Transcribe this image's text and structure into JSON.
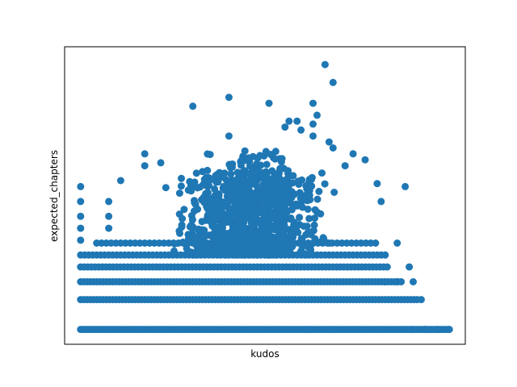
{
  "chart_data": {
    "type": "scatter",
    "title": "",
    "xlabel": "kudos",
    "ylabel": "expected_chapters",
    "ticks_visible": false,
    "grid": false,
    "legend": "none",
    "marker_color": "#1f77b4",
    "xlim": [
      0,
      100
    ],
    "ylim": [
      0,
      100
    ],
    "bands": [
      {
        "y": 5,
        "x_from": 4,
        "x_to": 96,
        "step": 0.6
      },
      {
        "y": 15,
        "x_from": 4,
        "x_to": 88,
        "step": 0.8
      },
      {
        "y": 21,
        "x_from": 4,
        "x_to": 84,
        "step": 0.8
      },
      {
        "y": 26,
        "x_from": 4,
        "x_to": 81,
        "step": 0.9
      },
      {
        "y": 30,
        "x_from": 4,
        "x_to": 80,
        "step": 1.0
      },
      {
        "y": 34,
        "x_from": 8,
        "x_to": 78,
        "step": 1.2
      }
    ],
    "clusters": [
      {
        "x_center": 46,
        "x_spread": 24,
        "y_min": 30,
        "y_max": 58,
        "n": 900
      },
      {
        "x_center": 48,
        "x_spread": 16,
        "y_min": 48,
        "y_max": 65,
        "n": 120
      }
    ],
    "points": [
      {
        "x": 4,
        "y": 53
      },
      {
        "x": 4,
        "y": 48
      },
      {
        "x": 4,
        "y": 43
      },
      {
        "x": 4,
        "y": 39
      },
      {
        "x": 4,
        "y": 35
      },
      {
        "x": 11,
        "y": 48
      },
      {
        "x": 11,
        "y": 43
      },
      {
        "x": 11,
        "y": 39
      },
      {
        "x": 14,
        "y": 55
      },
      {
        "x": 20,
        "y": 64
      },
      {
        "x": 20,
        "y": 60
      },
      {
        "x": 24,
        "y": 61
      },
      {
        "x": 32,
        "y": 80
      },
      {
        "x": 41,
        "y": 83
      },
      {
        "x": 41,
        "y": 70
      },
      {
        "x": 45,
        "y": 65
      },
      {
        "x": 51,
        "y": 81
      },
      {
        "x": 55,
        "y": 73
      },
      {
        "x": 56,
        "y": 75
      },
      {
        "x": 58,
        "y": 75
      },
      {
        "x": 59,
        "y": 72
      },
      {
        "x": 62,
        "y": 74
      },
      {
        "x": 62,
        "y": 70
      },
      {
        "x": 63,
        "y": 77
      },
      {
        "x": 62,
        "y": 81
      },
      {
        "x": 65,
        "y": 94
      },
      {
        "x": 67,
        "y": 88
      },
      {
        "x": 66,
        "y": 68
      },
      {
        "x": 67,
        "y": 66
      },
      {
        "x": 75,
        "y": 62
      },
      {
        "x": 78,
        "y": 54
      },
      {
        "x": 79,
        "y": 48
      },
      {
        "x": 83,
        "y": 34
      },
      {
        "x": 86,
        "y": 26
      },
      {
        "x": 87,
        "y": 21
      },
      {
        "x": 89,
        "y": 15
      },
      {
        "x": 90,
        "y": 5
      },
      {
        "x": 93,
        "y": 5
      },
      {
        "x": 96,
        "y": 5
      },
      {
        "x": 85,
        "y": 53
      },
      {
        "x": 80,
        "y": 21
      },
      {
        "x": 83,
        "y": 21
      },
      {
        "x": 70,
        "y": 60
      },
      {
        "x": 72,
        "y": 64
      }
    ]
  }
}
